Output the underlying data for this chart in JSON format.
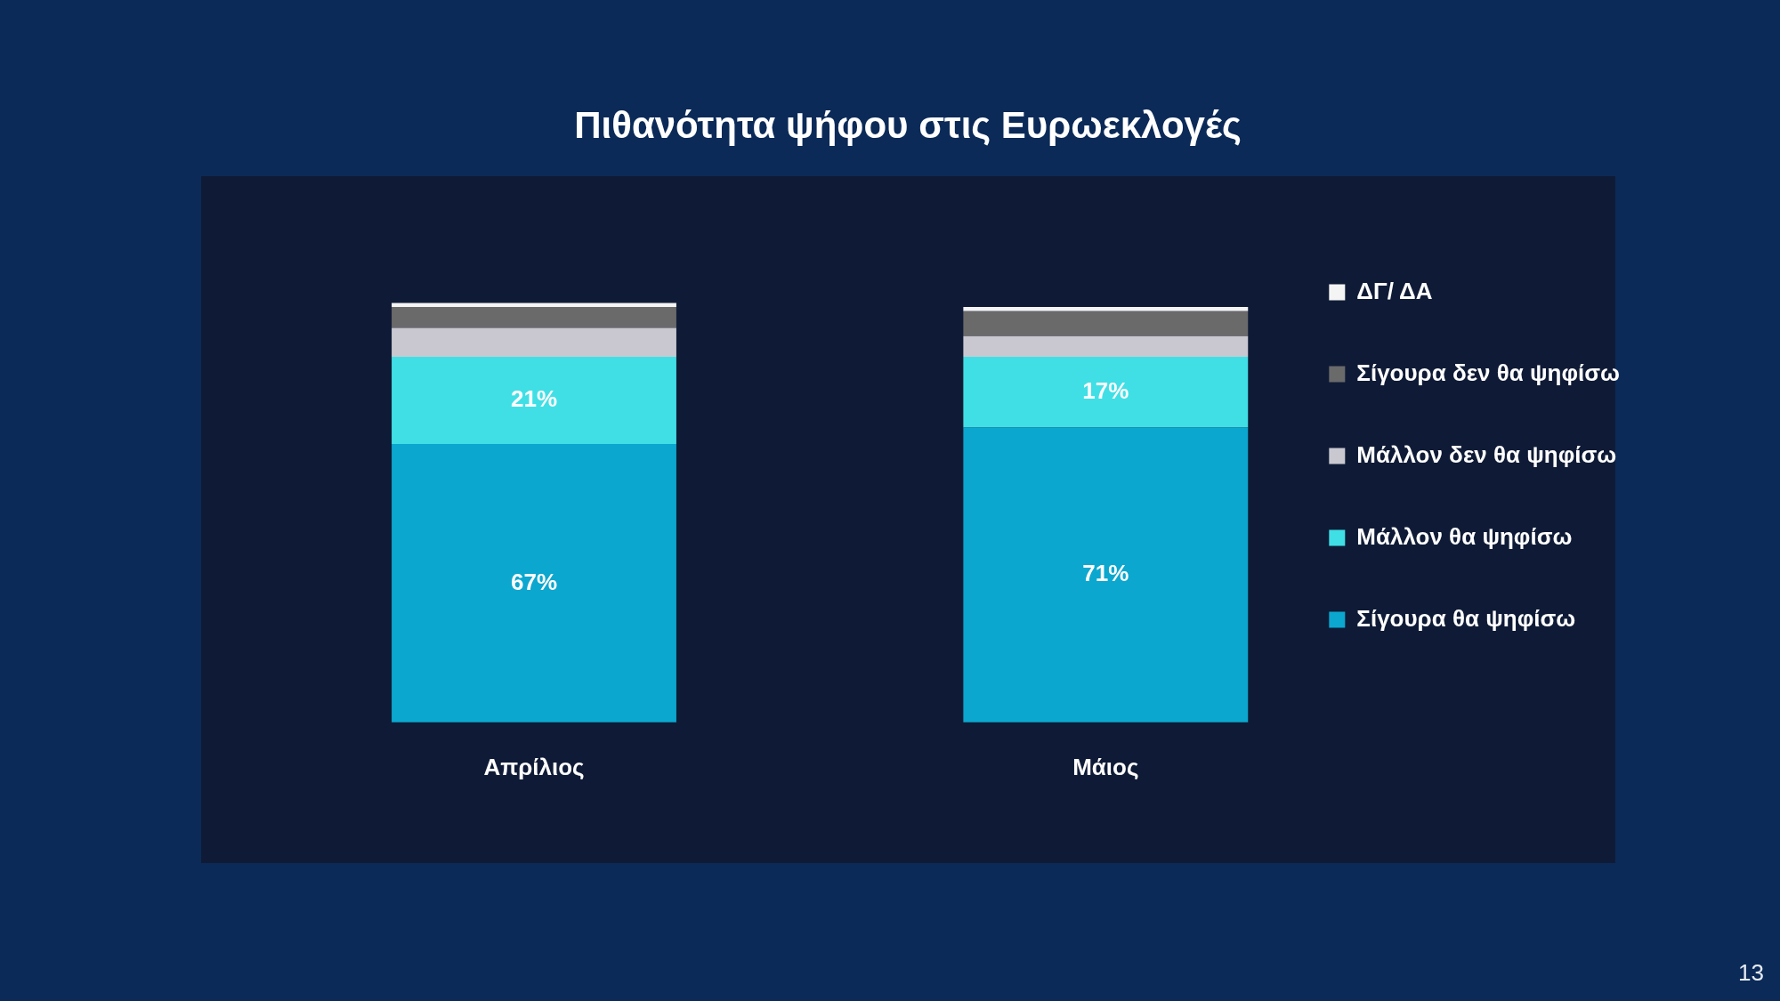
{
  "chart_data": {
    "type": "bar",
    "title": "Πιθανότητα ψήφου στις Ευρωεκλογές",
    "categories": [
      "Απρίλιος",
      "Μάιος"
    ],
    "stacked": true,
    "legend": "right",
    "series": [
      {
        "name": "Σίγουρα θα ψηφίσω",
        "color": "#0ba7cf",
        "values": [
          67,
          71
        ],
        "value_labels": [
          "67%",
          "71%"
        ]
      },
      {
        "name": "Μάλλον θα ψηφίσω",
        "color": "#40dfe6",
        "values": [
          21,
          17
        ],
        "value_labels": [
          "21%",
          "17%"
        ]
      },
      {
        "name": "Μάλλον δεν θα ψηφίσω",
        "color": "#c9c8d0",
        "values": [
          7,
          5
        ]
      },
      {
        "name": "Σίγουρα δεν θα ψηφίσω",
        "color": "#6a6a6a",
        "values": [
          5,
          6
        ]
      },
      {
        "name": "ΔΓ/ ΔΑ",
        "color": "#f4f4f4",
        "values": [
          1,
          1
        ]
      }
    ],
    "annotations": [
      "13"
    ]
  }
}
